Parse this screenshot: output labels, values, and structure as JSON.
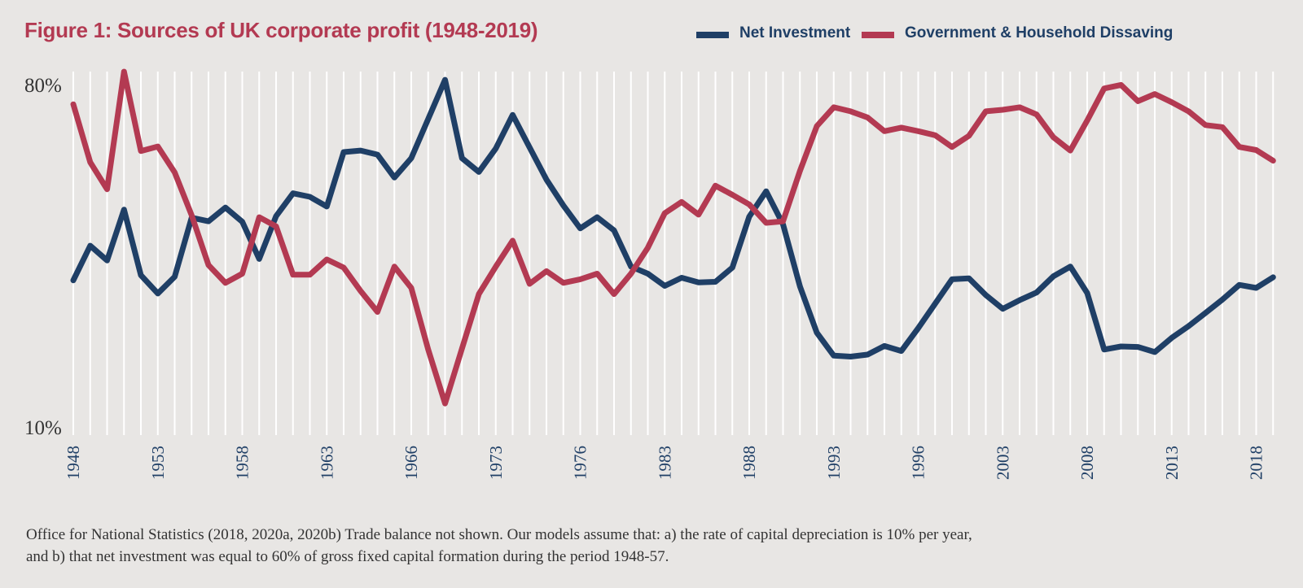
{
  "title": "Figure 1: Sources of UK corporate profit (1948-2019)",
  "footnote": {
    "line1": "Office for National Statistics (2018, 2020a, 2020b)  Trade balance not shown. Our models assume that: a) the rate of capital depreciation is 10% per year,",
    "line2": "and b) that net investment was equal to 60% of gross fixed capital formation during the period 1948-57."
  },
  "colors": {
    "background": "#e8e6e4",
    "net_investment": "#1f3f66",
    "dissaving": "#b33a52",
    "gridline": "#ffffff"
  },
  "chart_data": {
    "type": "line",
    "title": "Figure 1: Sources of UK corporate profit (1948-2019)",
    "xlabel": "",
    "ylabel": "",
    "ylim": [
      10,
      80
    ],
    "y_ticks": [
      "80%",
      "10%"
    ],
    "x_tick_labels": [
      "1948",
      "1953",
      "1958",
      "1963",
      "1966",
      "1973",
      "1976",
      "1983",
      "1988",
      "1993",
      "1996",
      "2003",
      "2008",
      "2013",
      "2018"
    ],
    "x": [
      1948,
      1949,
      1950,
      1951,
      1952,
      1953,
      1954,
      1955,
      1956,
      1957,
      1958,
      1959,
      1960,
      1961,
      1962,
      1963,
      1964,
      1965,
      1966,
      1967,
      1968,
      1969,
      1970,
      1971,
      1972,
      1973,
      1974,
      1975,
      1976,
      1977,
      1978,
      1979,
      1980,
      1981,
      1982,
      1983,
      1984,
      1985,
      1986,
      1987,
      1988,
      1989,
      1990,
      1991,
      1992,
      1993,
      1994,
      1995,
      1996,
      1997,
      1998,
      1999,
      2000,
      2001,
      2002,
      2003,
      2004,
      2005,
      2006,
      2007,
      2008,
      2009,
      2010,
      2011,
      2012,
      2013,
      2014,
      2015,
      2016,
      2017,
      2018,
      2019
    ],
    "legend": [
      "Net Investment",
      "Government & Household Dissaving"
    ],
    "series": [
      {
        "name": "Net Investment",
        "values": [
          40.1,
          46.9,
          44.0,
          54.0,
          41.1,
          37.5,
          40.8,
          52.4,
          51.7,
          54.4,
          51.6,
          44.3,
          52.7,
          57.2,
          56.5,
          54.6,
          65.3,
          65.6,
          64.8,
          60.3,
          64.1,
          71.8,
          79.5,
          64.1,
          61.4,
          66.0,
          72.6,
          66.2,
          59.9,
          54.8,
          50.3,
          52.5,
          49.9,
          42.8,
          41.4,
          39.0,
          40.6,
          39.7,
          39.8,
          42.6,
          52.6,
          57.6,
          51.1,
          38.9,
          29.8,
          25.3,
          25.1,
          25.5,
          27.2,
          26.2,
          30.7,
          35.5,
          40.3,
          40.5,
          37.2,
          34.5,
          36.2,
          37.7,
          40.9,
          42.8,
          37.6,
          26.5,
          27.1,
          27.0,
          26.0,
          28.8,
          31.1,
          33.7,
          36.3,
          39.2,
          38.6,
          40.7
        ]
      },
      {
        "name": "Government & Household Dissaving",
        "values": [
          74.7,
          63.3,
          58.0,
          81.1,
          65.5,
          66.4,
          61.3,
          52.9,
          43.1,
          39.6,
          41.4,
          52.5,
          50.7,
          41.2,
          41.2,
          44.2,
          42.6,
          38.0,
          33.9,
          42.8,
          38.6,
          26.5,
          15.9,
          26.7,
          37.4,
          42.8,
          47.9,
          39.4,
          41.9,
          39.6,
          40.3,
          41.4,
          37.4,
          41.4,
          46.5,
          53.3,
          55.5,
          53.0,
          58.7,
          56.9,
          55.0,
          51.4,
          51.7,
          61.6,
          70.4,
          74.1,
          73.3,
          72.1,
          69.4,
          70.1,
          69.4,
          68.6,
          66.3,
          68.5,
          73.3,
          73.6,
          74.1,
          72.7,
          68.2,
          65.6,
          71.5,
          77.8,
          78.5,
          75.3,
          76.7,
          75.1,
          73.3,
          70.6,
          70.2,
          66.3,
          65.7,
          63.6
        ]
      }
    ]
  }
}
